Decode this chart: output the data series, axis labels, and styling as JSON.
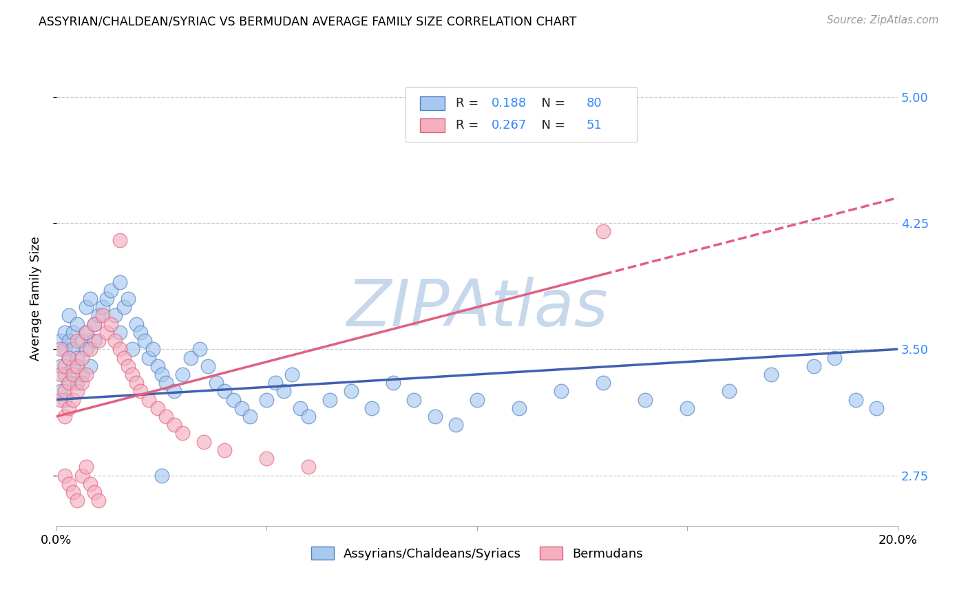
{
  "title": "ASSYRIAN/CHALDEAN/SYRIAC VS BERMUDAN AVERAGE FAMILY SIZE CORRELATION CHART",
  "source": "Source: ZipAtlas.com",
  "ylabel": "Average Family Size",
  "xlim": [
    0.0,
    0.2
  ],
  "ylim": [
    2.45,
    5.15
  ],
  "yticks": [
    2.75,
    3.5,
    4.25,
    5.0
  ],
  "xticks": [
    0.0,
    0.05,
    0.1,
    0.15,
    0.2
  ],
  "xtick_labels": [
    "0.0%",
    "",
    "",
    "",
    "20.0%"
  ],
  "legend_label1": "Assyrians/Chaldeans/Syriacs",
  "legend_label2": "Bermudans",
  "R1": "0.188",
  "N1": "80",
  "R2": "0.267",
  "N2": "51",
  "blue_fill": "#A8C8F0",
  "pink_fill": "#F4B0C0",
  "blue_edge": "#5080C0",
  "pink_edge": "#E06080",
  "blue_line": "#4060B0",
  "pink_line": "#E06080",
  "watermark": "ZIPAtlas",
  "watermark_color": "#C8D8EC",
  "blue_scatter_x": [
    0.001,
    0.001,
    0.001,
    0.002,
    0.002,
    0.002,
    0.002,
    0.003,
    0.003,
    0.003,
    0.003,
    0.004,
    0.004,
    0.004,
    0.005,
    0.005,
    0.005,
    0.006,
    0.006,
    0.007,
    0.007,
    0.007,
    0.008,
    0.008,
    0.009,
    0.009,
    0.01,
    0.011,
    0.012,
    0.013,
    0.014,
    0.015,
    0.016,
    0.017,
    0.018,
    0.019,
    0.02,
    0.021,
    0.022,
    0.023,
    0.024,
    0.025,
    0.026,
    0.028,
    0.03,
    0.032,
    0.034,
    0.036,
    0.038,
    0.04,
    0.042,
    0.044,
    0.046,
    0.05,
    0.052,
    0.054,
    0.056,
    0.058,
    0.06,
    0.065,
    0.07,
    0.075,
    0.08,
    0.085,
    0.09,
    0.095,
    0.1,
    0.11,
    0.12,
    0.13,
    0.14,
    0.15,
    0.16,
    0.17,
    0.18,
    0.185,
    0.19,
    0.195,
    0.015,
    0.025
  ],
  "blue_scatter_y": [
    3.25,
    3.4,
    3.55,
    3.5,
    3.6,
    3.35,
    3.2,
    3.45,
    3.3,
    3.55,
    3.7,
    3.4,
    3.6,
    3.5,
    3.65,
    3.45,
    3.3,
    3.55,
    3.35,
    3.6,
    3.5,
    3.75,
    3.8,
    3.4,
    3.65,
    3.55,
    3.7,
    3.75,
    3.8,
    3.85,
    3.7,
    3.6,
    3.75,
    3.8,
    3.5,
    3.65,
    3.6,
    3.55,
    3.45,
    3.5,
    3.4,
    3.35,
    3.3,
    3.25,
    3.35,
    3.45,
    3.5,
    3.4,
    3.3,
    3.25,
    3.2,
    3.15,
    3.1,
    3.2,
    3.3,
    3.25,
    3.35,
    3.15,
    3.1,
    3.2,
    3.25,
    3.15,
    3.3,
    3.2,
    3.1,
    3.05,
    3.2,
    3.15,
    3.25,
    3.3,
    3.2,
    3.15,
    3.25,
    3.35,
    3.4,
    3.45,
    3.2,
    3.15,
    3.9,
    2.75
  ],
  "pink_scatter_x": [
    0.001,
    0.001,
    0.001,
    0.002,
    0.002,
    0.002,
    0.003,
    0.003,
    0.003,
    0.004,
    0.004,
    0.005,
    0.005,
    0.005,
    0.006,
    0.006,
    0.007,
    0.007,
    0.008,
    0.009,
    0.01,
    0.011,
    0.012,
    0.013,
    0.014,
    0.015,
    0.016,
    0.017,
    0.018,
    0.019,
    0.02,
    0.022,
    0.024,
    0.026,
    0.028,
    0.03,
    0.035,
    0.04,
    0.05,
    0.06,
    0.002,
    0.003,
    0.004,
    0.005,
    0.006,
    0.007,
    0.008,
    0.009,
    0.01,
    0.015,
    0.13
  ],
  "pink_scatter_y": [
    3.2,
    3.35,
    3.5,
    3.1,
    3.25,
    3.4,
    3.15,
    3.3,
    3.45,
    3.2,
    3.35,
    3.25,
    3.4,
    3.55,
    3.3,
    3.45,
    3.6,
    3.35,
    3.5,
    3.65,
    3.55,
    3.7,
    3.6,
    3.65,
    3.55,
    3.5,
    3.45,
    3.4,
    3.35,
    3.3,
    3.25,
    3.2,
    3.15,
    3.1,
    3.05,
    3.0,
    2.95,
    2.9,
    2.85,
    2.8,
    2.75,
    2.7,
    2.65,
    2.6,
    2.75,
    2.8,
    2.7,
    2.65,
    2.6,
    4.15,
    4.2
  ]
}
